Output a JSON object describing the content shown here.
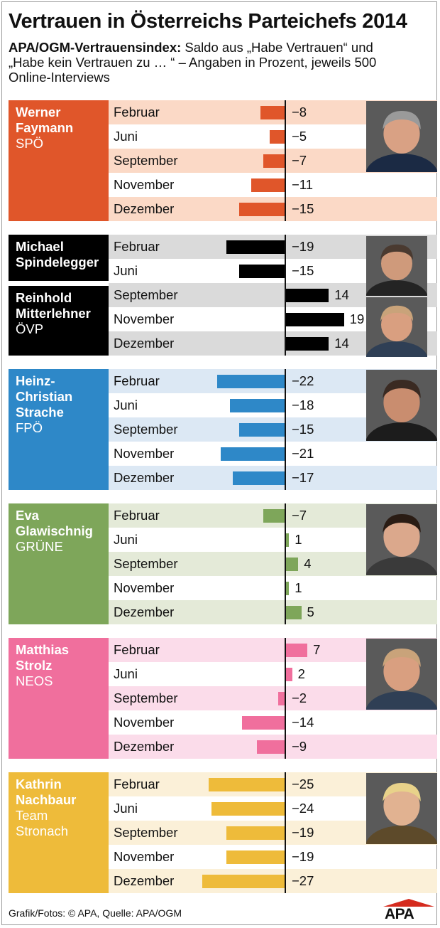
{
  "title": "Vertrauen in Österreichs Parteichefs 2014",
  "subtitle_bold": "APA/OGM-Vertrauensindex:",
  "subtitle_rest": " Saldo aus „Habe Vertrauen“ und „Habe kein Vertrauen zu … “ – Angaben in Prozent, jeweils 500 Online-Interviews",
  "footer": "Grafik/Fotos: © APA, Quelle: APA/OGM",
  "logo_text": "APA",
  "chart_data": {
    "type": "bar",
    "orientation": "horizontal",
    "title": "Vertrauen in Österreichs Parteichefs 2014",
    "categories": [
      "Februar",
      "Juni",
      "September",
      "November",
      "Dezember"
    ],
    "groups": [
      {
        "color": "#e0562a",
        "light": "#fbd9c6",
        "photo": "portrait-werner-faymann",
        "persons": [
          {
            "name": "Werner\nFaymann",
            "party": "SPÖ",
            "months": [
              "Februar",
              "Juni",
              "September",
              "November",
              "Dezember"
            ],
            "values": [
              -8,
              -5,
              -7,
              -11,
              -15
            ]
          }
        ]
      },
      {
        "color": "#000000",
        "light": "#dadada",
        "photo": "portrait-michael-spindelegger",
        "persons": [
          {
            "name": "Michael\nSpindelegger",
            "party": "",
            "months": [
              "Februar",
              "Juni"
            ],
            "values": [
              -19,
              -15
            ]
          },
          {
            "name": "Reinhold\nMitterlehner",
            "party": "ÖVP",
            "months": [
              "September",
              "November",
              "Dezember"
            ],
            "values": [
              14,
              19,
              14
            ]
          }
        ]
      },
      {
        "color": "#2e88c8",
        "light": "#dce8f4",
        "photo": "portrait-heinz-christian-strache",
        "persons": [
          {
            "name": "Heinz-\nChristian\nStrache",
            "party": "FPÖ",
            "months": [
              "Februar",
              "Juni",
              "September",
              "November",
              "Dezember"
            ],
            "values": [
              -22,
              -18,
              -15,
              -21,
              -17
            ]
          }
        ]
      },
      {
        "color": "#7ea65a",
        "light": "#e4ead8",
        "photo": "portrait-eva-glawischnig",
        "persons": [
          {
            "name": "Eva\nGlawischnig",
            "party": "GRÜNE",
            "months": [
              "Februar",
              "Juni",
              "September",
              "November",
              "Dezember"
            ],
            "values": [
              -7,
              1,
              4,
              1,
              5
            ]
          }
        ]
      },
      {
        "color": "#f06f9d",
        "light": "#fbdcea",
        "photo": "portrait-matthias-strolz",
        "persons": [
          {
            "name": "Matthias\nStrolz",
            "party": "NEOS",
            "months": [
              "Februar",
              "Juni",
              "September",
              "November",
              "Dezember"
            ],
            "values": [
              7,
              2,
              -2,
              -14,
              -9
            ]
          }
        ]
      },
      {
        "color": "#eebb3a",
        "light": "#fbf0d8",
        "photo": "portrait-kathrin-nachbaur",
        "persons": [
          {
            "name": "Kathrin\nNachbaur",
            "party": "Team\nStronach",
            "months": [
              "Februar",
              "Juni",
              "September",
              "November",
              "Dezember"
            ],
            "values": [
              -25,
              -24,
              -19,
              -19,
              -27
            ]
          }
        ]
      }
    ]
  }
}
